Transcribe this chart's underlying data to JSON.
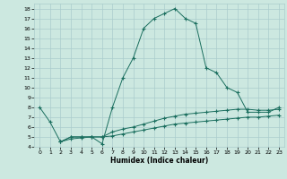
{
  "title": "",
  "xlabel": "Humidex (Indice chaleur)",
  "bg_color": "#cce8e0",
  "grid_color": "#aacccc",
  "line_color": "#1a6e5e",
  "line1_x": [
    0,
    1,
    2,
    3,
    4,
    5,
    6,
    7,
    8,
    9,
    10,
    11,
    12,
    13,
    14,
    15,
    16,
    17,
    18,
    19,
    20,
    21,
    22,
    23
  ],
  "line1_y": [
    8.0,
    6.5,
    4.5,
    5.0,
    5.0,
    5.0,
    4.3,
    8.0,
    11.0,
    13.0,
    16.0,
    17.0,
    17.5,
    18.0,
    17.0,
    16.5,
    12.0,
    11.5,
    10.0,
    9.5,
    7.5,
    7.5,
    7.5,
    8.0
  ],
  "line2_x": [
    2,
    3,
    4,
    5,
    6,
    7,
    8,
    9,
    10,
    11,
    12,
    13,
    14,
    15,
    16,
    17,
    18,
    19,
    20,
    21,
    22,
    23
  ],
  "line2_y": [
    4.5,
    5.0,
    5.0,
    5.0,
    5.0,
    5.5,
    5.8,
    6.0,
    6.3,
    6.6,
    6.9,
    7.1,
    7.3,
    7.4,
    7.5,
    7.6,
    7.7,
    7.8,
    7.8,
    7.7,
    7.7,
    7.8
  ],
  "line3_x": [
    2,
    3,
    4,
    5,
    6,
    7,
    8,
    9,
    10,
    11,
    12,
    13,
    14,
    15,
    16,
    17,
    18,
    19,
    20,
    21,
    22,
    23
  ],
  "line3_y": [
    4.5,
    4.8,
    4.9,
    5.0,
    5.0,
    5.1,
    5.3,
    5.5,
    5.7,
    5.9,
    6.1,
    6.3,
    6.4,
    6.5,
    6.6,
    6.7,
    6.8,
    6.9,
    7.0,
    7.0,
    7.1,
    7.2
  ],
  "xlim": [
    -0.5,
    23.5
  ],
  "ylim": [
    4,
    18.5
  ],
  "yticks": [
    4,
    5,
    6,
    7,
    8,
    9,
    10,
    11,
    12,
    13,
    14,
    15,
    16,
    17,
    18
  ],
  "xticks": [
    0,
    1,
    2,
    3,
    4,
    5,
    6,
    7,
    8,
    9,
    10,
    11,
    12,
    13,
    14,
    15,
    16,
    17,
    18,
    19,
    20,
    21,
    22,
    23
  ]
}
